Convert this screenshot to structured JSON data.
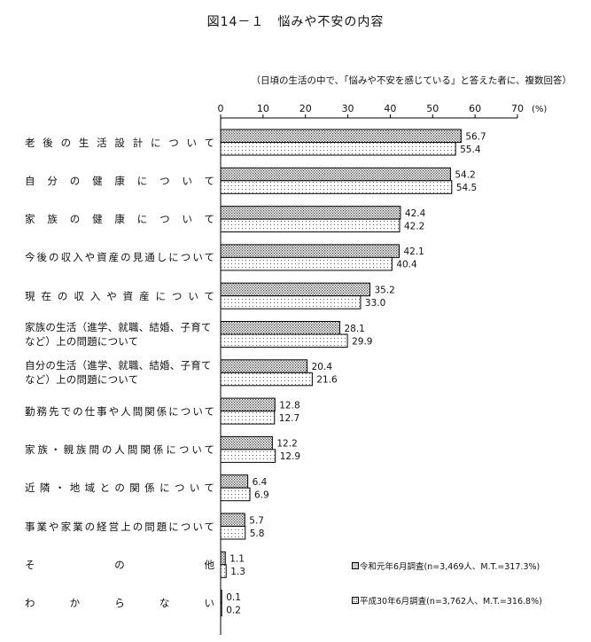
{
  "figure_title": "図14－１　悩みや不安の内容",
  "subtitle": "（日頃の生活の中で、「悩みや不安を感じている」と答えた者に、複数回答）",
  "chart_data": {
    "type": "bar",
    "orientation": "horizontal",
    "unit_label": "(%)",
    "xlim": [
      0,
      70
    ],
    "x_ticks": [
      "0",
      "10",
      "20",
      "30",
      "40",
      "50",
      "60",
      "70"
    ],
    "grid": false,
    "legend_position": "bottom-right",
    "categories": [
      "老後の生活設計について",
      "自分の健康について",
      "家族の健康について",
      "今後の収入や資産の見通しについて",
      "現在の収入や資産について",
      "家族の生活（進学、就職、結婚、子育てなど）上の問題について",
      "自分の生活（進学、就職、結婚、子育てなど）上の問題について",
      "勤務先での仕事や人間関係について",
      "家族・親族間の人間関係について",
      "近隣・地域との関係について",
      "事業や家業の経営上の問題について",
      "その他",
      "わからない"
    ],
    "series": [
      {
        "name": "令和元年6月調査(n=3,469人、M.T.=317.3%)",
        "pattern": "dense-dots",
        "values": [
          56.7,
          54.2,
          42.4,
          42.1,
          35.2,
          28.1,
          20.4,
          12.8,
          12.2,
          6.4,
          5.7,
          1.1,
          0.1
        ],
        "data_labels": [
          "56.7",
          "54.2",
          "42.4",
          "42.1",
          "35.2",
          "28.1",
          "20.4",
          "12.8",
          "12.2",
          "6.4",
          "5.7",
          "1.1",
          "0.1"
        ]
      },
      {
        "name": "平成30年6月調査(n=3,762人、M.T.=316.8%)",
        "pattern": "sparse-dots",
        "values": [
          55.4,
          54.5,
          42.2,
          40.4,
          33.0,
          29.9,
          21.6,
          12.7,
          12.9,
          6.9,
          5.8,
          1.3,
          0.2
        ],
        "data_labels": [
          "55.4",
          "54.5",
          "42.2",
          "40.4",
          "33.0",
          "29.9",
          "21.6",
          "12.7",
          "12.9",
          "6.9",
          "5.8",
          "1.3",
          "0.2"
        ]
      }
    ]
  }
}
